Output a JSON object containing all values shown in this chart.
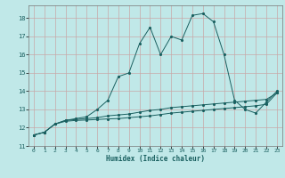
{
  "title": "",
  "xlabel": "Humidex (Indice chaleur)",
  "ylabel": "",
  "background_color": "#c0e8e8",
  "grid_color": "#c8a8a8",
  "line_color": "#1a6060",
  "xlim": [
    -0.5,
    23.5
  ],
  "ylim": [
    11,
    18.7
  ],
  "yticks": [
    11,
    12,
    13,
    14,
    15,
    16,
    17,
    18
  ],
  "xticks": [
    0,
    1,
    2,
    3,
    4,
    5,
    6,
    7,
    8,
    9,
    10,
    11,
    12,
    13,
    14,
    15,
    16,
    17,
    18,
    19,
    20,
    21,
    22,
    23
  ],
  "line1_x": [
    0,
    1,
    2,
    3,
    4,
    5,
    6,
    7,
    8,
    9,
    10,
    11,
    12,
    13,
    14,
    15,
    16,
    17,
    18,
    19,
    20,
    21,
    22,
    23
  ],
  "line1_y": [
    11.6,
    11.75,
    12.2,
    12.4,
    12.5,
    12.6,
    13.0,
    13.5,
    14.8,
    15.0,
    16.6,
    17.5,
    16.0,
    17.0,
    16.8,
    18.15,
    18.25,
    17.8,
    16.0,
    13.5,
    13.0,
    12.8,
    13.4,
    14.0
  ],
  "line2_x": [
    0,
    1,
    2,
    3,
    4,
    5,
    6,
    7,
    8,
    9,
    10,
    11,
    12,
    13,
    14,
    15,
    16,
    17,
    18,
    19,
    20,
    21,
    22,
    23
  ],
  "line2_y": [
    11.6,
    11.75,
    12.2,
    12.4,
    12.45,
    12.5,
    12.55,
    12.65,
    12.7,
    12.75,
    12.85,
    12.95,
    13.0,
    13.1,
    13.15,
    13.2,
    13.25,
    13.3,
    13.35,
    13.4,
    13.45,
    13.5,
    13.55,
    13.9
  ],
  "line3_x": [
    0,
    1,
    2,
    3,
    4,
    5,
    6,
    7,
    8,
    9,
    10,
    11,
    12,
    13,
    14,
    15,
    16,
    17,
    18,
    19,
    20,
    21,
    22,
    23
  ],
  "line3_y": [
    11.6,
    11.75,
    12.2,
    12.35,
    12.4,
    12.42,
    12.45,
    12.48,
    12.5,
    12.55,
    12.6,
    12.65,
    12.72,
    12.8,
    12.85,
    12.9,
    12.95,
    13.0,
    13.05,
    13.1,
    13.15,
    13.2,
    13.28,
    13.9
  ]
}
